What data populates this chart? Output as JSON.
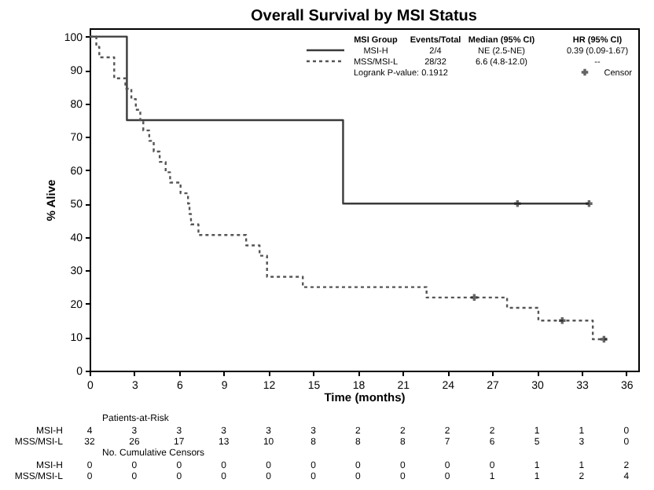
{
  "chart_data": {
    "type": "step",
    "title": "Overall Survival by MSI Status",
    "xlabel": "Time (months)",
    "ylabel": "% Alive",
    "xlim": [
      0,
      36.8
    ],
    "ylim": [
      0,
      102.5
    ],
    "xticks": [
      0,
      3,
      6,
      9,
      12,
      15,
      18,
      21,
      24,
      27,
      30,
      33,
      36
    ],
    "yticks": [
      0,
      10,
      20,
      30,
      40,
      50,
      60,
      70,
      80,
      90,
      100
    ],
    "grid": false,
    "legend": "top right",
    "series": [
      {
        "name": "MSI-H",
        "color": "#3a3a3a",
        "line_style": "solid",
        "x": [
          0,
          2.5,
          17,
          33.5
        ],
        "values": [
          100,
          75,
          50,
          50
        ]
      },
      {
        "name": "MSS/MSI-L",
        "color": "#555555",
        "line_style": "dotted",
        "x": [
          0,
          0.45,
          0.65,
          1.65,
          2.4,
          2.8,
          3.1,
          3.4,
          3.6,
          4.0,
          4.3,
          4.7,
          5.1,
          5.4,
          6.1,
          6.6,
          6.7,
          6.8,
          7.3,
          10.5,
          11.4,
          11.9,
          14.3,
          22.6,
          28.0,
          30.1,
          33.75,
          34.7
        ],
        "values": [
          100,
          96.9,
          93.8,
          87.5,
          84.4,
          81.3,
          78.1,
          75,
          71.9,
          68.8,
          65.6,
          62.5,
          59.4,
          56.3,
          53.1,
          50,
          46.9,
          43.8,
          40.6,
          37.5,
          34.4,
          28.1,
          25,
          21.9,
          18.8,
          15,
          9.4,
          9.4
        ]
      },
      {
        "name": "Censor",
        "type": "scatter",
        "marker": "cross",
        "color": "#222222",
        "x": [
          28.7,
          33.5,
          25.8,
          31.7,
          34.5
        ],
        "values": [
          50,
          50,
          21.9,
          15,
          9.4
        ]
      }
    ],
    "annotations": [
      "MSI Group",
      "Events/Total",
      "Median (95% CI)",
      "HR (95% CI)",
      "2/4",
      "NE (2.5-NE)",
      "0.39 (0.09-1.67)",
      "28/32",
      "6.6 (4.8-12.0)",
      "--",
      "Logrank P-value: 0.1912",
      "Patients-at-Risk",
      "4 3 3 3 3 3 2 2 2 2 1 1 0",
      "32 26 17 13 10 8 8 8 7 6 5 3 0",
      "No. Cumulative Censors",
      "0 0 0 0 0 0 0 0 0 0 1 1 2",
      "0 0 0 0 0 0 0 0 0 1 1 2 4"
    ]
  }
}
